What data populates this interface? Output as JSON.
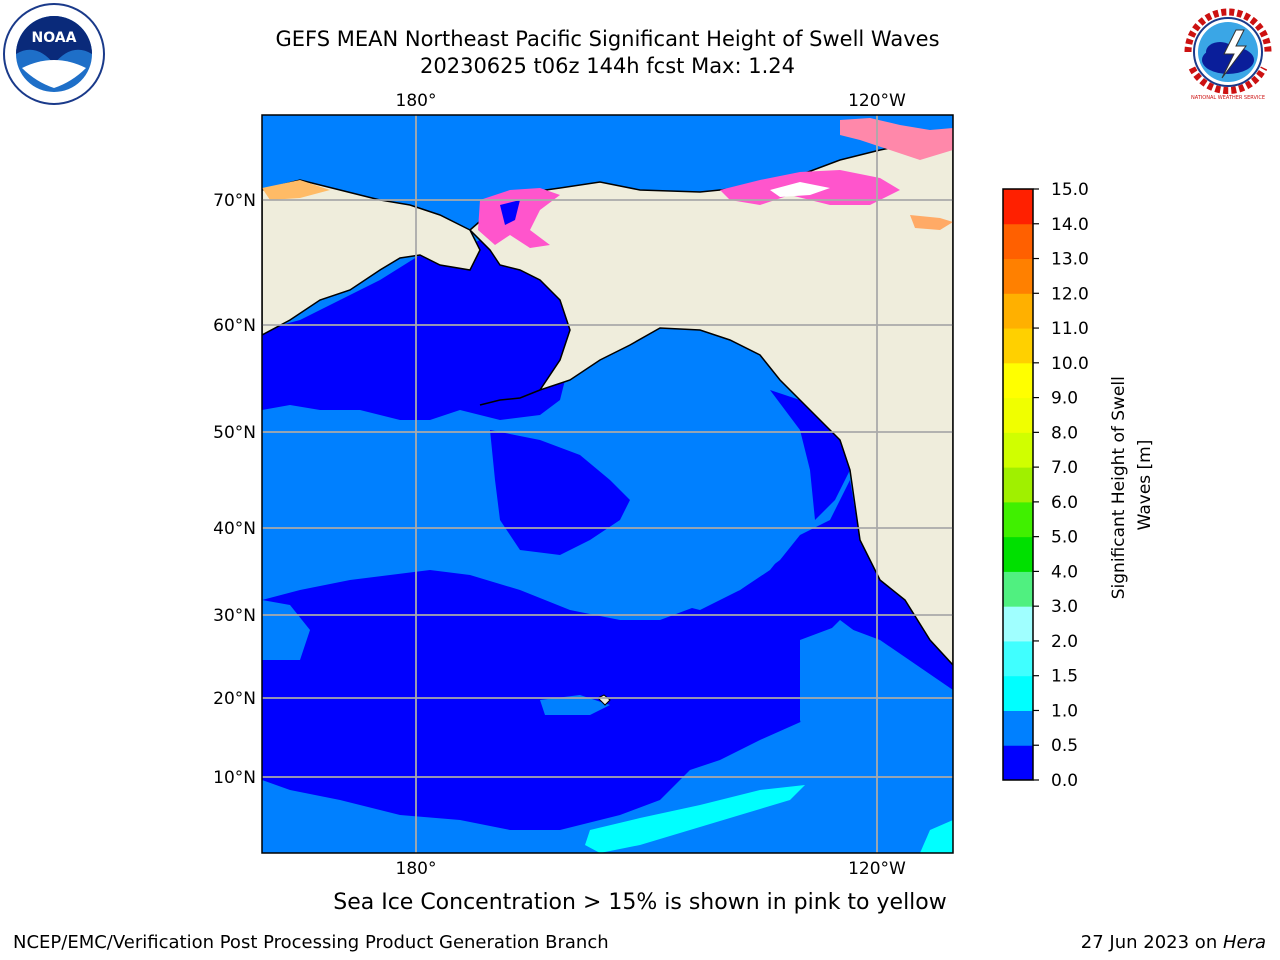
{
  "header": {
    "title_line1": "GEFS MEAN Northeast Pacific Significant Height of Swell Waves",
    "title_line2": "20230625 t06z 144h fcst   Max: 1.24"
  },
  "map": {
    "top_lon_labels": [
      "180°",
      "120°W"
    ],
    "bottom_lon_labels": [
      "180°",
      "120°W"
    ],
    "lat_labels": [
      "70°N",
      "60°N",
      "50°N",
      "40°N",
      "30°N",
      "20°N",
      "10°N"
    ],
    "colors": {
      "land": "#efeddc",
      "ocean_low": "#0000ff",
      "ocean_mid": "#0080ff",
      "swell_1_1_5": "#00ffff",
      "grid": "#aaaaaa"
    }
  },
  "colorbar": {
    "label": "Significant Height of Swell Waves [m]",
    "ticks": [
      "0.0",
      "0.5",
      "1.0",
      "1.5",
      "2.0",
      "3.0",
      "4.0",
      "5.0",
      "6.0",
      "7.0",
      "8.0",
      "9.0",
      "10.0",
      "11.0",
      "12.0",
      "13.0",
      "14.0",
      "15.0"
    ],
    "colors": [
      "#0000ff",
      "#0080ff",
      "#00ffff",
      "#40ffff",
      "#a0ffff",
      "#50f080",
      "#00e000",
      "#40f000",
      "#a0f000",
      "#d0ff00",
      "#f0ff00",
      "#ffff00",
      "#ffd000",
      "#ffb000",
      "#ff8000",
      "#ff6000",
      "#ff2000"
    ]
  },
  "logos": {
    "left": "NOAA",
    "right": "NATIONAL WEATHER SERVICE"
  },
  "caption": "Sea Ice Concentration > 15% is shown in pink to yellow",
  "footer": {
    "left": "NCEP/EMC/Verification Post Processing Product Generation Branch",
    "right_prefix": "27 Jun 2023 on ",
    "right_host": "Hera"
  }
}
